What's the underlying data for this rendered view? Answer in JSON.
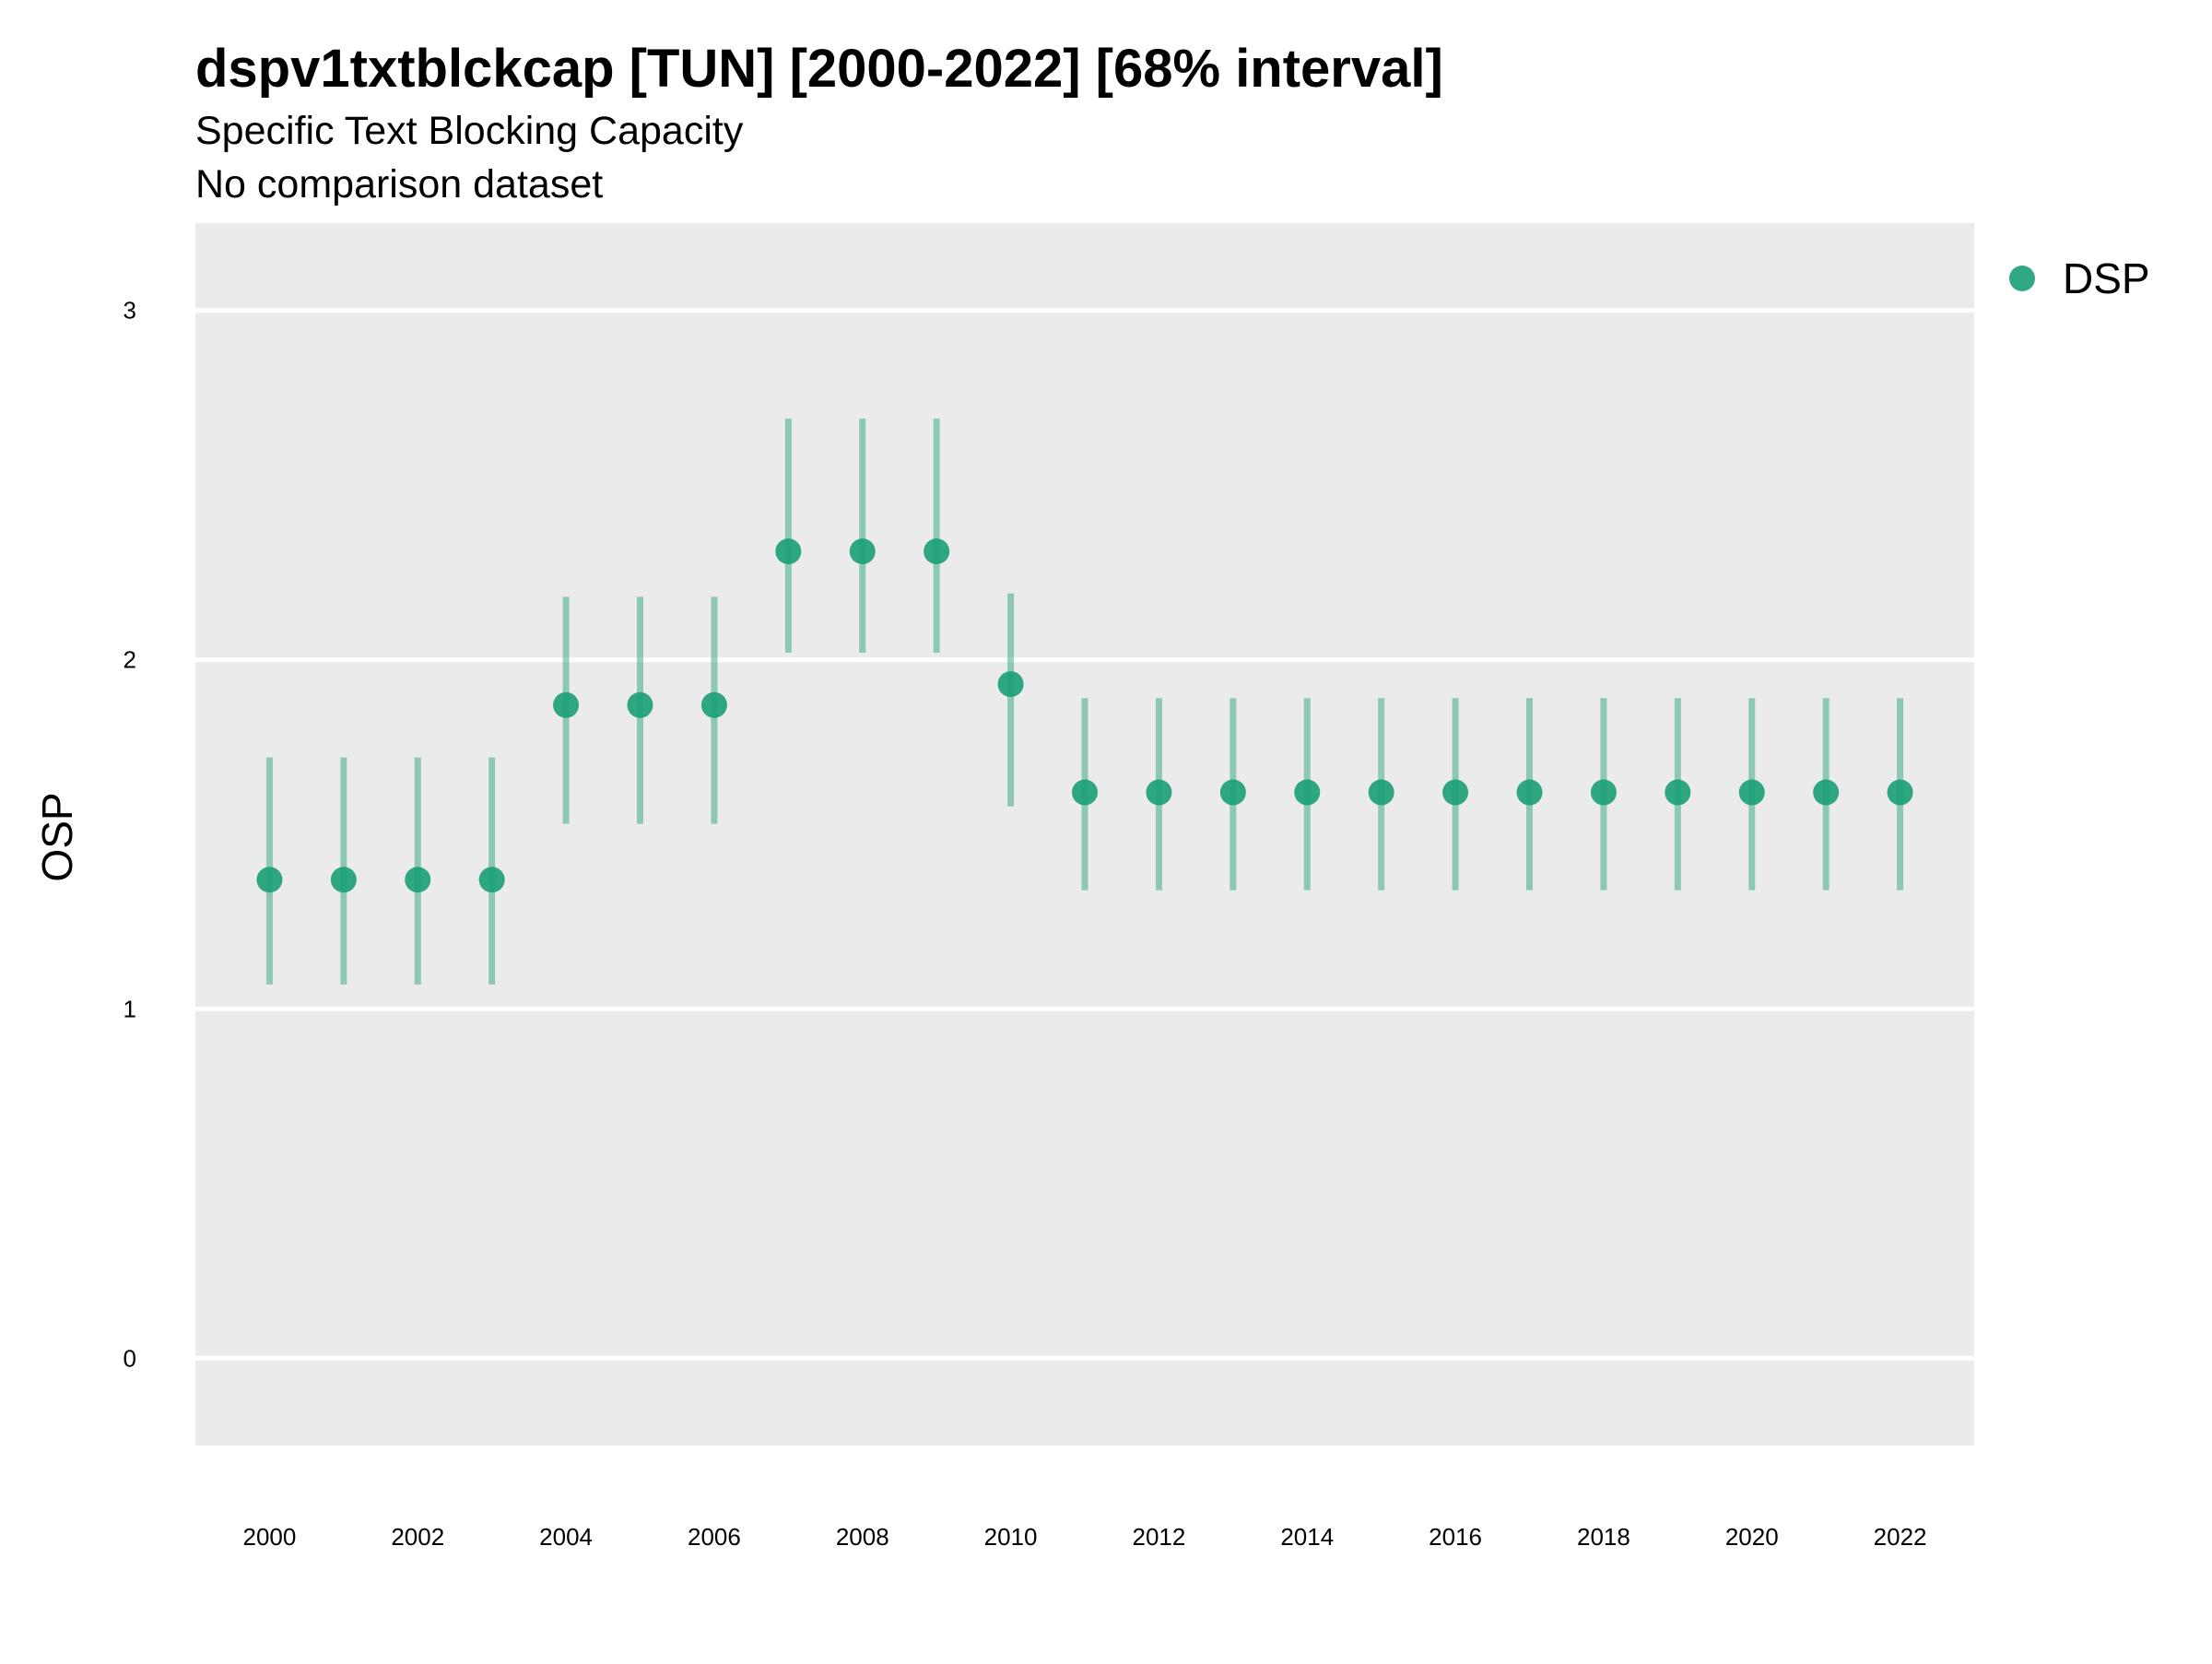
{
  "chart_data": {
    "type": "scatter",
    "title": "dspv1txtblckcap [TUN] [2000-2022] [68% interval]",
    "subtitle": "Specific Text Blocking Capacity",
    "subtitle2": "No comparison dataset",
    "ylabel": "OSP",
    "xlabel": "",
    "xlim": [
      1999.0,
      2023.0
    ],
    "ylim": [
      -0.25,
      3.25
    ],
    "yticks": [
      0,
      1,
      2,
      3
    ],
    "xticks": [
      2000,
      2002,
      2004,
      2006,
      2008,
      2010,
      2012,
      2014,
      2016,
      2018,
      2020,
      2022
    ],
    "grid": "horizontal",
    "legend_position": "right",
    "series": [
      {
        "name": "DSP",
        "color": "#1a9e77",
        "x": [
          2000,
          2001,
          2002,
          2003,
          2004,
          2005,
          2006,
          2007,
          2008,
          2009,
          2010,
          2011,
          2012,
          2013,
          2014,
          2015,
          2016,
          2017,
          2018,
          2019,
          2020,
          2021,
          2022
        ],
        "y": [
          1.37,
          1.37,
          1.37,
          1.37,
          1.87,
          1.87,
          1.87,
          2.31,
          2.31,
          2.31,
          1.93,
          1.62,
          1.62,
          1.62,
          1.62,
          1.62,
          1.62,
          1.62,
          1.62,
          1.62,
          1.62,
          1.62,
          1.62
        ],
        "lower": [
          1.07,
          1.07,
          1.07,
          1.07,
          1.53,
          1.53,
          1.53,
          2.02,
          2.02,
          2.02,
          1.58,
          1.34,
          1.34,
          1.34,
          1.34,
          1.34,
          1.34,
          1.34,
          1.34,
          1.34,
          1.34,
          1.34,
          1.34
        ],
        "upper": [
          1.72,
          1.72,
          1.72,
          1.72,
          2.18,
          2.18,
          2.18,
          2.69,
          2.69,
          2.69,
          2.19,
          1.89,
          1.89,
          1.89,
          1.89,
          1.89,
          1.89,
          1.89,
          1.89,
          1.89,
          1.89,
          1.89,
          1.89
        ]
      }
    ]
  }
}
